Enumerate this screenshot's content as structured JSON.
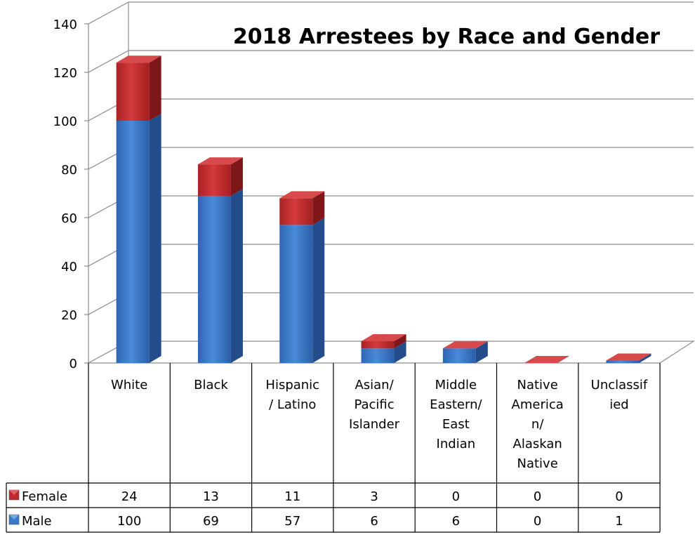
{
  "chart_data": {
    "type": "bar",
    "stacked": true,
    "title": "2018 Arrestees by Race and Gender",
    "categories": [
      [
        "White"
      ],
      [
        "Black"
      ],
      [
        "Hispanic",
        "/ Latino"
      ],
      [
        "Asian/",
        "Pacific",
        "Islander"
      ],
      [
        "Middle",
        "Eastern/",
        "East",
        "Indian"
      ],
      [
        "Native",
        "America",
        "n/",
        "Alaskan",
        "Native"
      ],
      [
        "Unclassif",
        "ied"
      ]
    ],
    "series": [
      {
        "name": "Male",
        "values": [
          100,
          69,
          57,
          6,
          6,
          0,
          1
        ],
        "color": "#3a78c8"
      },
      {
        "name": "Female",
        "values": [
          24,
          13,
          11,
          3,
          0,
          0,
          0
        ],
        "color": "#c0282b"
      }
    ],
    "table_order": [
      "Female",
      "Male"
    ],
    "ylim": [
      0,
      140
    ],
    "yticks": [
      0,
      20,
      40,
      60,
      80,
      100,
      120,
      140
    ],
    "grid": true,
    "data_table": true
  }
}
